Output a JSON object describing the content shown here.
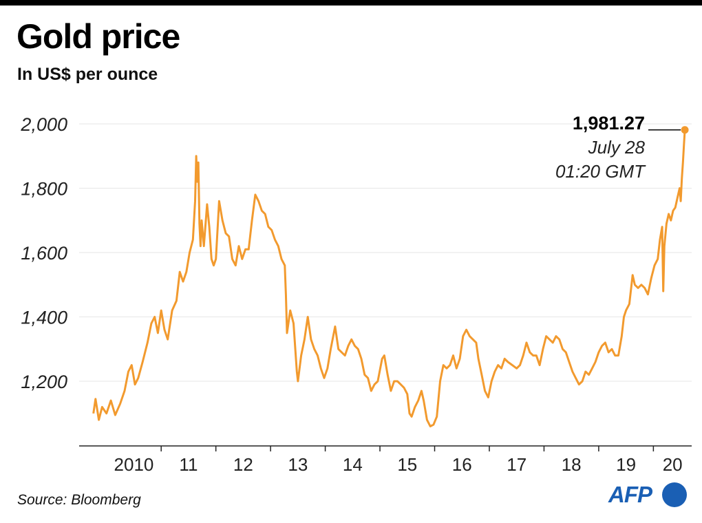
{
  "title": "Gold price",
  "subtitle": "In US$ per ounce",
  "source": "Source: Bloomberg",
  "logo": "AFP",
  "colors": {
    "line": "#f29a2e",
    "grid": "#e6e6e6",
    "axis": "#222222",
    "logo": "#1a5fb4"
  },
  "chart_data": {
    "type": "line",
    "title": "Gold price",
    "subtitle": "In US$ per ounce",
    "xlabel": "",
    "ylabel": "",
    "ylim": [
      1000,
      2000
    ],
    "xlim": [
      2009.5,
      2020.7
    ],
    "yticks": [
      1200,
      1400,
      1600,
      1800,
      2000
    ],
    "ytick_labels": [
      "1,200",
      "1,400",
      "1,600",
      "1,800",
      "2,000"
    ],
    "xticks": [
      {
        "label": "2010",
        "x": 2010.0
      },
      {
        "label": "11",
        "x": 2011.0
      },
      {
        "label": "12",
        "x": 2012.0
      },
      {
        "label": "13",
        "x": 2013.0
      },
      {
        "label": "14",
        "x": 2014.0
      },
      {
        "label": "15",
        "x": 2015.0
      },
      {
        "label": "16",
        "x": 2016.0
      },
      {
        "label": "17",
        "x": 2017.0
      },
      {
        "label": "18",
        "x": 2018.0
      },
      {
        "label": "19",
        "x": 2019.0
      },
      {
        "label": "20",
        "x": 2020.0
      }
    ],
    "grid": true,
    "series": [
      {
        "name": "Gold price",
        "points": [
          [
            2009.76,
            1100
          ],
          [
            2009.8,
            1145
          ],
          [
            2009.86,
            1080
          ],
          [
            2009.92,
            1120
          ],
          [
            2010.0,
            1100
          ],
          [
            2010.08,
            1140
          ],
          [
            2010.16,
            1095
          ],
          [
            2010.25,
            1130
          ],
          [
            2010.33,
            1170
          ],
          [
            2010.4,
            1230
          ],
          [
            2010.46,
            1250
          ],
          [
            2010.52,
            1190
          ],
          [
            2010.58,
            1210
          ],
          [
            2010.66,
            1260
          ],
          [
            2010.75,
            1320
          ],
          [
            2010.82,
            1380
          ],
          [
            2010.88,
            1400
          ],
          [
            2010.94,
            1350
          ],
          [
            2011.0,
            1420
          ],
          [
            2011.06,
            1360
          ],
          [
            2011.12,
            1330
          ],
          [
            2011.2,
            1420
          ],
          [
            2011.28,
            1450
          ],
          [
            2011.34,
            1540
          ],
          [
            2011.4,
            1510
          ],
          [
            2011.46,
            1540
          ],
          [
            2011.52,
            1600
          ],
          [
            2011.58,
            1640
          ],
          [
            2011.62,
            1760
          ],
          [
            2011.64,
            1900
          ],
          [
            2011.66,
            1820
          ],
          [
            2011.68,
            1880
          ],
          [
            2011.7,
            1690
          ],
          [
            2011.72,
            1620
          ],
          [
            2011.74,
            1700
          ],
          [
            2011.78,
            1620
          ],
          [
            2011.84,
            1750
          ],
          [
            2011.88,
            1680
          ],
          [
            2011.92,
            1580
          ],
          [
            2011.96,
            1560
          ],
          [
            2012.0,
            1580
          ],
          [
            2012.06,
            1760
          ],
          [
            2012.12,
            1700
          ],
          [
            2012.18,
            1660
          ],
          [
            2012.24,
            1650
          ],
          [
            2012.3,
            1580
          ],
          [
            2012.36,
            1560
          ],
          [
            2012.42,
            1620
          ],
          [
            2012.48,
            1580
          ],
          [
            2012.54,
            1610
          ],
          [
            2012.6,
            1610
          ],
          [
            2012.66,
            1700
          ],
          [
            2012.72,
            1780
          ],
          [
            2012.78,
            1760
          ],
          [
            2012.84,
            1730
          ],
          [
            2012.9,
            1720
          ],
          [
            2012.96,
            1680
          ],
          [
            2013.02,
            1670
          ],
          [
            2013.08,
            1640
          ],
          [
            2013.14,
            1620
          ],
          [
            2013.2,
            1580
          ],
          [
            2013.26,
            1560
          ],
          [
            2013.28,
            1470
          ],
          [
            2013.3,
            1350
          ],
          [
            2013.36,
            1420
          ],
          [
            2013.42,
            1380
          ],
          [
            2013.48,
            1230
          ],
          [
            2013.5,
            1200
          ],
          [
            2013.56,
            1280
          ],
          [
            2013.62,
            1330
          ],
          [
            2013.68,
            1400
          ],
          [
            2013.74,
            1330
          ],
          [
            2013.8,
            1300
          ],
          [
            2013.86,
            1280
          ],
          [
            2013.92,
            1240
          ],
          [
            2013.98,
            1210
          ],
          [
            2014.04,
            1240
          ],
          [
            2014.1,
            1300
          ],
          [
            2014.18,
            1370
          ],
          [
            2014.24,
            1300
          ],
          [
            2014.3,
            1290
          ],
          [
            2014.36,
            1280
          ],
          [
            2014.42,
            1310
          ],
          [
            2014.48,
            1330
          ],
          [
            2014.54,
            1310
          ],
          [
            2014.6,
            1300
          ],
          [
            2014.66,
            1270
          ],
          [
            2014.72,
            1220
          ],
          [
            2014.78,
            1210
          ],
          [
            2014.84,
            1170
          ],
          [
            2014.9,
            1190
          ],
          [
            2014.96,
            1200
          ],
          [
            2015.04,
            1270
          ],
          [
            2015.08,
            1280
          ],
          [
            2015.14,
            1220
          ],
          [
            2015.2,
            1170
          ],
          [
            2015.26,
            1200
          ],
          [
            2015.32,
            1200
          ],
          [
            2015.38,
            1190
          ],
          [
            2015.44,
            1180
          ],
          [
            2015.5,
            1160
          ],
          [
            2015.54,
            1100
          ],
          [
            2015.58,
            1090
          ],
          [
            2015.64,
            1120
          ],
          [
            2015.7,
            1140
          ],
          [
            2015.76,
            1170
          ],
          [
            2015.8,
            1140
          ],
          [
            2015.86,
            1080
          ],
          [
            2015.92,
            1060
          ],
          [
            2015.98,
            1065
          ],
          [
            2016.04,
            1090
          ],
          [
            2016.1,
            1200
          ],
          [
            2016.16,
            1250
          ],
          [
            2016.22,
            1240
          ],
          [
            2016.28,
            1250
          ],
          [
            2016.34,
            1280
          ],
          [
            2016.4,
            1240
          ],
          [
            2016.46,
            1270
          ],
          [
            2016.52,
            1340
          ],
          [
            2016.58,
            1360
          ],
          [
            2016.64,
            1340
          ],
          [
            2016.7,
            1330
          ],
          [
            2016.76,
            1320
          ],
          [
            2016.8,
            1270
          ],
          [
            2016.86,
            1220
          ],
          [
            2016.92,
            1170
          ],
          [
            2016.98,
            1150
          ],
          [
            2017.04,
            1200
          ],
          [
            2017.1,
            1230
          ],
          [
            2017.16,
            1250
          ],
          [
            2017.22,
            1240
          ],
          [
            2017.28,
            1270
          ],
          [
            2017.34,
            1260
          ],
          [
            2017.42,
            1250
          ],
          [
            2017.5,
            1240
          ],
          [
            2017.56,
            1250
          ],
          [
            2017.62,
            1280
          ],
          [
            2017.68,
            1320
          ],
          [
            2017.74,
            1290
          ],
          [
            2017.8,
            1280
          ],
          [
            2017.86,
            1280
          ],
          [
            2017.92,
            1250
          ],
          [
            2017.98,
            1300
          ],
          [
            2018.04,
            1340
          ],
          [
            2018.1,
            1330
          ],
          [
            2018.16,
            1320
          ],
          [
            2018.22,
            1340
          ],
          [
            2018.28,
            1330
          ],
          [
            2018.34,
            1300
          ],
          [
            2018.4,
            1290
          ],
          [
            2018.46,
            1260
          ],
          [
            2018.52,
            1230
          ],
          [
            2018.58,
            1210
          ],
          [
            2018.64,
            1190
          ],
          [
            2018.7,
            1200
          ],
          [
            2018.76,
            1230
          ],
          [
            2018.82,
            1220
          ],
          [
            2018.88,
            1240
          ],
          [
            2018.94,
            1260
          ],
          [
            2019.0,
            1290
          ],
          [
            2019.06,
            1310
          ],
          [
            2019.12,
            1320
          ],
          [
            2019.18,
            1290
          ],
          [
            2019.24,
            1300
          ],
          [
            2019.3,
            1280
          ],
          [
            2019.36,
            1280
          ],
          [
            2019.42,
            1340
          ],
          [
            2019.46,
            1400
          ],
          [
            2019.5,
            1420
          ],
          [
            2019.56,
            1440
          ],
          [
            2019.62,
            1530
          ],
          [
            2019.66,
            1500
          ],
          [
            2019.72,
            1490
          ],
          [
            2019.78,
            1500
          ],
          [
            2019.84,
            1490
          ],
          [
            2019.9,
            1470
          ],
          [
            2019.96,
            1520
          ],
          [
            2020.02,
            1560
          ],
          [
            2020.08,
            1580
          ],
          [
            2020.12,
            1640
          ],
          [
            2020.16,
            1680
          ],
          [
            2020.18,
            1480
          ],
          [
            2020.2,
            1620
          ],
          [
            2020.24,
            1690
          ],
          [
            2020.28,
            1720
          ],
          [
            2020.32,
            1700
          ],
          [
            2020.36,
            1730
          ],
          [
            2020.4,
            1740
          ],
          [
            2020.44,
            1770
          ],
          [
            2020.48,
            1800
          ],
          [
            2020.5,
            1760
          ],
          [
            2020.52,
            1830
          ],
          [
            2020.54,
            1880
          ],
          [
            2020.56,
            1940
          ],
          [
            2020.575,
            1981.27
          ]
        ]
      }
    ],
    "annotation": {
      "value_label": "1,981.27",
      "date_label": "July 28",
      "time_label": "01:20 GMT",
      "x": 2020.575,
      "y": 1981.27
    }
  }
}
